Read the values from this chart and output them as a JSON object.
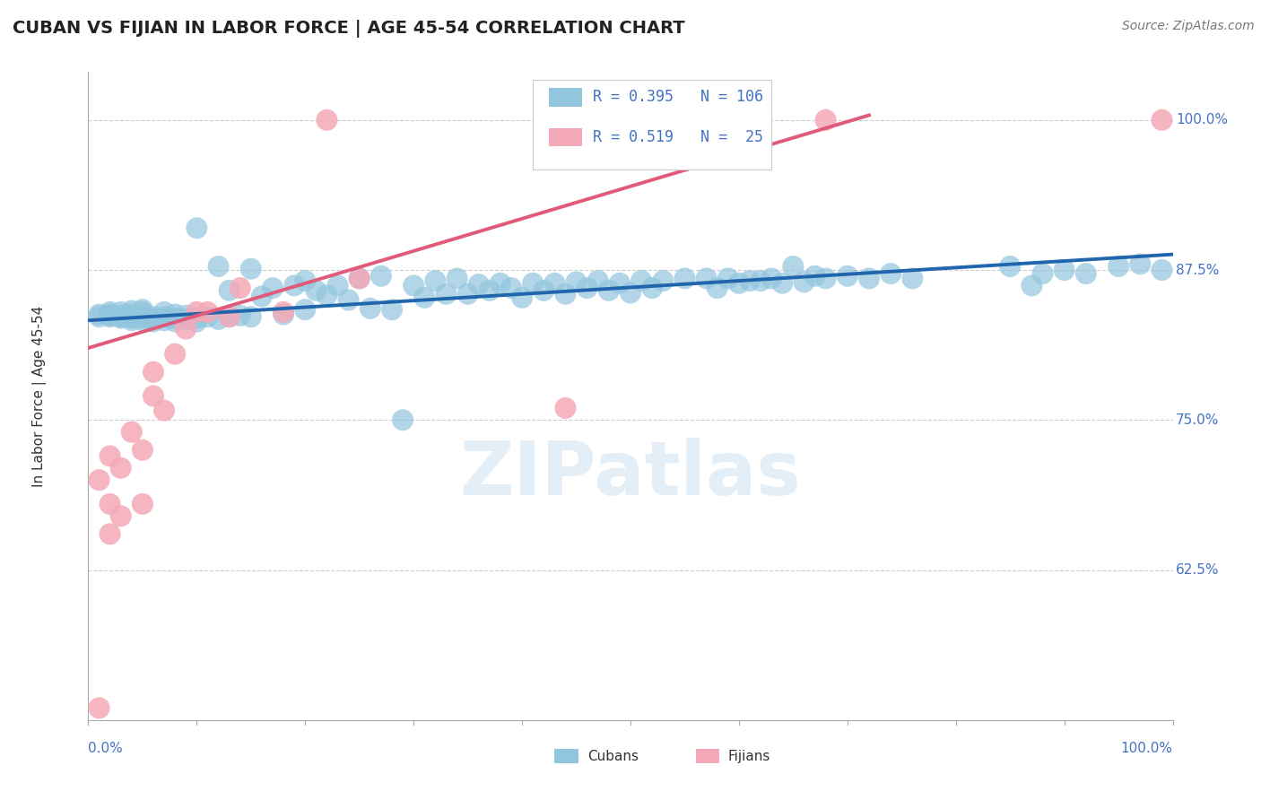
{
  "title": "CUBAN VS FIJIAN IN LABOR FORCE | AGE 45-54 CORRELATION CHART",
  "source": "Source: ZipAtlas.com",
  "ylabel": "In Labor Force | Age 45-54",
  "watermark": "ZIPatlas",
  "xlim": [
    0.0,
    1.0
  ],
  "ylim": [
    0.5,
    1.04
  ],
  "ytick_labels": [
    "62.5%",
    "75.0%",
    "87.5%",
    "100.0%"
  ],
  "ytick_values": [
    0.625,
    0.75,
    0.875,
    1.0
  ],
  "blue_R": 0.395,
  "blue_N": 106,
  "pink_R": 0.519,
  "pink_N": 25,
  "blue_color": "#92c5de",
  "pink_color": "#f4a9b8",
  "blue_line_color": "#2166ac",
  "pink_line_color": "#e05a7a",
  "label_color": "#4472c4",
  "grid_color": "#cccccc",
  "background_color": "#ffffff",
  "title_color": "#222222",
  "source_color": "#777777",
  "blue_scatter_x": [
    0.01,
    0.01,
    0.02,
    0.02,
    0.02,
    0.02,
    0.03,
    0.03,
    0.03,
    0.03,
    0.04,
    0.04,
    0.04,
    0.04,
    0.04,
    0.05,
    0.05,
    0.05,
    0.05,
    0.05,
    0.06,
    0.06,
    0.06,
    0.07,
    0.07,
    0.07,
    0.08,
    0.08,
    0.08,
    0.09,
    0.09,
    0.1,
    0.1,
    0.1,
    0.11,
    0.12,
    0.12,
    0.13,
    0.13,
    0.14,
    0.15,
    0.15,
    0.16,
    0.17,
    0.18,
    0.19,
    0.2,
    0.2,
    0.21,
    0.22,
    0.23,
    0.24,
    0.25,
    0.26,
    0.27,
    0.28,
    0.29,
    0.3,
    0.31,
    0.32,
    0.33,
    0.34,
    0.35,
    0.36,
    0.37,
    0.38,
    0.39,
    0.4,
    0.41,
    0.42,
    0.43,
    0.44,
    0.45,
    0.46,
    0.47,
    0.48,
    0.49,
    0.5,
    0.51,
    0.52,
    0.53,
    0.55,
    0.57,
    0.58,
    0.59,
    0.6,
    0.61,
    0.62,
    0.63,
    0.64,
    0.65,
    0.66,
    0.67,
    0.68,
    0.7,
    0.72,
    0.74,
    0.76,
    0.85,
    0.87,
    0.88,
    0.9,
    0.92,
    0.95,
    0.97,
    0.99
  ],
  "blue_scatter_y": [
    0.836,
    0.838,
    0.836,
    0.837,
    0.838,
    0.84,
    0.835,
    0.836,
    0.837,
    0.84,
    0.833,
    0.835,
    0.836,
    0.838,
    0.841,
    0.833,
    0.835,
    0.837,
    0.84,
    0.842,
    0.832,
    0.834,
    0.836,
    0.833,
    0.836,
    0.84,
    0.832,
    0.835,
    0.838,
    0.834,
    0.837,
    0.832,
    0.835,
    0.91,
    0.836,
    0.834,
    0.878,
    0.836,
    0.858,
    0.837,
    0.836,
    0.876,
    0.853,
    0.86,
    0.838,
    0.862,
    0.842,
    0.866,
    0.858,
    0.854,
    0.862,
    0.85,
    0.868,
    0.843,
    0.87,
    0.842,
    0.75,
    0.862,
    0.852,
    0.866,
    0.855,
    0.868,
    0.855,
    0.863,
    0.858,
    0.864,
    0.86,
    0.852,
    0.864,
    0.858,
    0.864,
    0.855,
    0.865,
    0.86,
    0.866,
    0.858,
    0.864,
    0.856,
    0.866,
    0.86,
    0.866,
    0.868,
    0.868,
    0.86,
    0.868,
    0.864,
    0.866,
    0.866,
    0.868,
    0.864,
    0.878,
    0.865,
    0.87,
    0.868,
    0.87,
    0.868,
    0.872,
    0.868,
    0.878,
    0.862,
    0.872,
    0.875,
    0.872,
    0.878,
    0.88,
    0.875
  ],
  "pink_scatter_x": [
    0.01,
    0.01,
    0.02,
    0.02,
    0.02,
    0.03,
    0.03,
    0.04,
    0.05,
    0.05,
    0.06,
    0.06,
    0.07,
    0.08,
    0.09,
    0.1,
    0.11,
    0.13,
    0.14,
    0.18,
    0.22,
    0.25,
    0.44,
    0.68,
    0.99
  ],
  "pink_scatter_y": [
    0.51,
    0.7,
    0.655,
    0.68,
    0.72,
    0.67,
    0.71,
    0.74,
    0.68,
    0.725,
    0.77,
    0.79,
    0.758,
    0.805,
    0.826,
    0.84,
    0.84,
    0.836,
    0.86,
    0.84,
    1.0,
    0.868,
    0.76,
    1.0,
    1.0
  ],
  "blue_line_x0": 0.0,
  "blue_line_x1": 1.0,
  "blue_line_y0": 0.833,
  "blue_line_y1": 0.888,
  "pink_line_x0": 0.0,
  "pink_line_x1": 0.72,
  "pink_line_y0": 0.81,
  "pink_line_y1": 1.004
}
